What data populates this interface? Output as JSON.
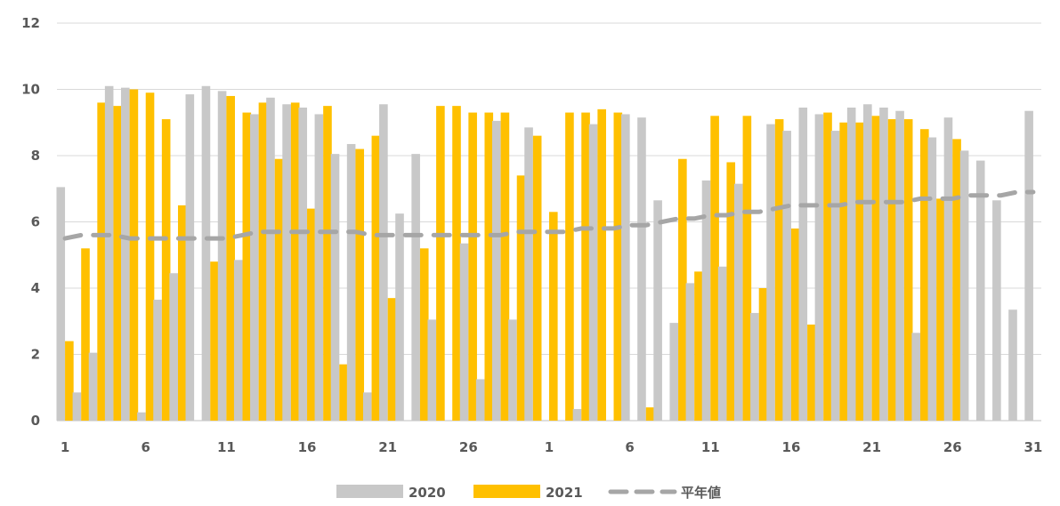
{
  "chart_data": {
    "type": "bar",
    "ylim": [
      0,
      12
    ],
    "y_ticks": [
      "0",
      "2",
      "4",
      "6",
      "8",
      "10",
      "12"
    ],
    "grid": true,
    "legend_position": "bottom",
    "x_ticks": [
      {
        "index": 0,
        "label": "1"
      },
      {
        "index": 5,
        "label": "6"
      },
      {
        "index": 10,
        "label": "11"
      },
      {
        "index": 15,
        "label": "16"
      },
      {
        "index": 20,
        "label": "21"
      },
      {
        "index": 25,
        "label": "26"
      },
      {
        "index": 30,
        "label": "1"
      },
      {
        "index": 35,
        "label": "6"
      },
      {
        "index": 40,
        "label": "11"
      },
      {
        "index": 45,
        "label": "16"
      },
      {
        "index": 50,
        "label": "21"
      },
      {
        "index": 55,
        "label": "26"
      },
      {
        "index": 60,
        "label": "31"
      }
    ],
    "series": [
      {
        "name": "2020",
        "kind": "bar",
        "color": "#c8c8c8",
        "values": [
          7.05,
          0.85,
          2.05,
          10.1,
          10.05,
          0.25,
          3.65,
          4.45,
          9.85,
          10.1,
          9.95,
          4.85,
          9.25,
          9.75,
          9.55,
          9.45,
          9.25,
          8.05,
          8.35,
          0.85,
          9.55,
          6.25,
          8.05,
          3.05,
          0,
          5.35,
          1.25,
          9.05,
          3.05,
          8.85,
          0,
          0,
          0.35,
          8.95,
          0,
          9.25,
          9.15,
          6.65,
          2.95,
          4.15,
          7.25,
          4.65,
          7.15,
          3.25,
          8.95,
          8.75,
          9.45,
          9.25,
          8.75,
          9.45,
          9.55,
          9.45,
          9.35,
          2.65,
          8.55,
          9.15,
          8.15,
          7.85,
          6.65,
          3.35,
          9.35
        ]
      },
      {
        "name": "2021",
        "kind": "bar",
        "color": "#ffc000",
        "values": [
          2.4,
          5.2,
          9.6,
          9.5,
          10.0,
          9.9,
          9.1,
          6.5,
          0,
          4.8,
          9.8,
          9.3,
          9.6,
          7.9,
          9.6,
          6.4,
          9.5,
          1.7,
          8.2,
          8.6,
          3.7,
          0,
          5.2,
          9.5,
          9.5,
          9.3,
          9.3,
          9.3,
          7.4,
          8.6,
          6.3,
          9.3,
          9.3,
          9.4,
          9.3,
          0,
          0.4,
          0,
          7.9,
          4.5,
          9.2,
          7.8,
          9.2,
          4.0,
          9.1,
          5.8,
          2.9,
          9.3,
          9.0,
          9.0,
          9.2,
          9.1,
          9.1,
          8.8,
          6.7,
          8.5,
          0,
          0,
          0,
          0,
          0
        ]
      },
      {
        "name": "平年値",
        "kind": "line",
        "style": "dashed",
        "color": "#a6a6a6",
        "values": [
          5.5,
          5.6,
          5.6,
          5.6,
          5.5,
          5.5,
          5.5,
          5.5,
          5.5,
          5.5,
          5.5,
          5.6,
          5.7,
          5.7,
          5.7,
          5.7,
          5.7,
          5.7,
          5.7,
          5.6,
          5.6,
          5.6,
          5.6,
          5.6,
          5.6,
          5.6,
          5.6,
          5.6,
          5.7,
          5.7,
          5.7,
          5.7,
          5.8,
          5.8,
          5.8,
          5.9,
          5.9,
          6.0,
          6.1,
          6.1,
          6.2,
          6.2,
          6.3,
          6.3,
          6.4,
          6.5,
          6.5,
          6.5,
          6.5,
          6.6,
          6.6,
          6.6,
          6.6,
          6.7,
          6.7,
          6.7,
          6.8,
          6.8,
          6.8,
          6.9,
          6.9
        ]
      }
    ]
  }
}
